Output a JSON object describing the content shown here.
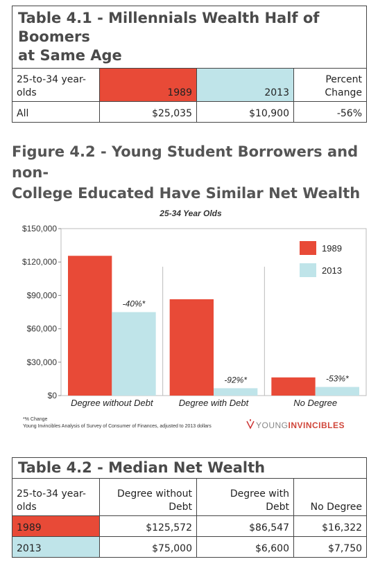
{
  "table_1": {
    "title_lines": [
      "Table 4.1 - Millennials Wealth Half of Boomers",
      "at Same Age"
    ],
    "header": [
      "25-to-34 year-olds",
      "1989",
      "2013",
      "Percent Change"
    ],
    "rows": [
      [
        "All",
        "$25,035",
        "$10,900",
        "-56%"
      ]
    ]
  },
  "figure_title_lines": [
    "Figure 4.2 - Young Student Borrowers and non-",
    "College Educated Have Similar Net Wealth"
  ],
  "chart_data": {
    "type": "bar",
    "title": "25-34 Year Olds",
    "categories": [
      "Degree without Debt",
      "Degree with Debt",
      "No Degree"
    ],
    "series": [
      {
        "name": "1989",
        "color": "#e84a37",
        "values": [
          125572,
          86547,
          16322
        ]
      },
      {
        "name": "2013",
        "color": "#bfe4e9",
        "values": [
          75000,
          6600,
          7750
        ]
      }
    ],
    "change_labels": [
      "-40%*",
      "-92%*",
      "-53%*"
    ],
    "ylim": [
      0,
      150000
    ],
    "yticks": [
      {
        "value": 0,
        "label": "$0"
      },
      {
        "value": 30000,
        "label": "$30,000"
      },
      {
        "value": 60000,
        "label": "$60,000"
      },
      {
        "value": 90000,
        "label": "$90,000"
      },
      {
        "value": 120000,
        "label": "$120,000"
      },
      {
        "value": 150000,
        "label": "$150,000"
      }
    ],
    "legend": "upper right",
    "grid": false,
    "footnote": "*% Change",
    "source": "Young Invincibles Analysis of Survey of Consumer of Finances, adjusted to 2013 dollars",
    "logo": [
      "YOUNG",
      "INVINCIBLES"
    ]
  },
  "table_2": {
    "title": "Table 4.2 - Median Net Wealth",
    "header": [
      "25-to-34 year-olds",
      "Degree without Debt",
      "Degree with Debt",
      "No Degree"
    ],
    "rows": [
      [
        "1989",
        "$125,572",
        "$86,547",
        "$16,322"
      ],
      [
        "2013",
        "$75,000",
        "$6,600",
        "$7,750"
      ]
    ]
  }
}
